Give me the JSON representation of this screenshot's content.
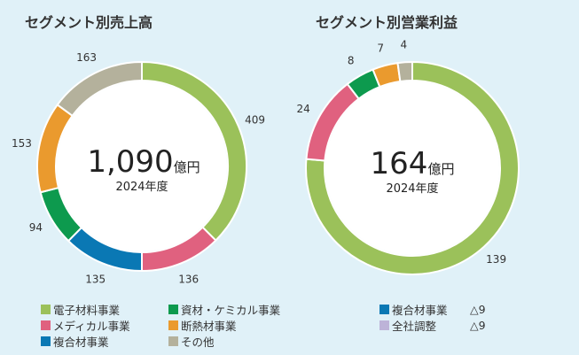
{
  "chart_data": [
    {
      "type": "pie",
      "donut": true,
      "title": "セグメント別売上高",
      "center_value": "1,090",
      "center_unit": "億円",
      "center_sub": "2024年度",
      "categories": [
        "電子材料事業",
        "メディカル事業",
        "複合材事業",
        "資材・ケミカル事業",
        "断熱材事業",
        "その他"
      ],
      "values": [
        409,
        136,
        135,
        94,
        153,
        163
      ],
      "colors": [
        "#9bc15a",
        "#e0617f",
        "#0a78b4",
        "#0d9a4e",
        "#ea9a2e",
        "#b4b19c"
      ]
    },
    {
      "type": "pie",
      "donut": true,
      "title": "セグメント別営業利益",
      "center_value": "164",
      "center_unit": "億円",
      "center_sub": "2024年度",
      "categories": [
        "電子材料事業",
        "メディカル事業",
        "資材・ケミカル事業",
        "断熱材事業",
        "その他"
      ],
      "values": [
        139,
        24,
        8,
        7,
        4
      ],
      "colors": [
        "#9bc15a",
        "#e0617f",
        "#0d9a4e",
        "#ea9a2e",
        "#b4b19c"
      ],
      "notes": [
        {
          "label": "複合材事業",
          "value": "△9",
          "color": "#0a78b4"
        },
        {
          "label": "全社調整",
          "value": "△9",
          "color": "#bdb3d8"
        }
      ]
    }
  ],
  "legend": [
    {
      "label": "電子材料事業",
      "color": "#9bc15a"
    },
    {
      "label": "メディカル事業",
      "color": "#e0617f"
    },
    {
      "label": "複合材事業",
      "color": "#0a78b4"
    },
    {
      "label": "資材・ケミカル事業",
      "color": "#0d9a4e"
    },
    {
      "label": "断熱材事業",
      "color": "#ea9a2e"
    },
    {
      "label": "その他",
      "color": "#b4b19c"
    }
  ]
}
